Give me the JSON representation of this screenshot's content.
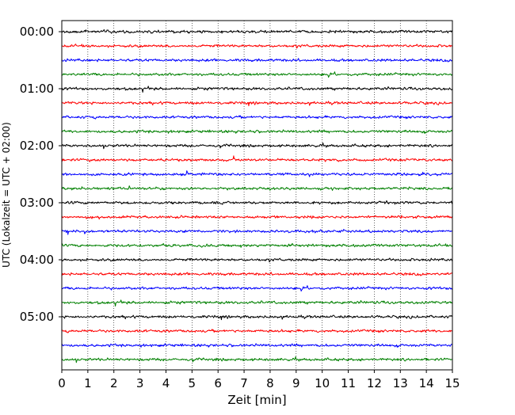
{
  "chart_data": {
    "type": "line",
    "title": "",
    "xlabel": "Zeit  [min]",
    "ylabel": "UTC (Lokalzeit = UTC + 02:00)",
    "xlim": [
      0,
      15
    ],
    "x_ticks": [
      0,
      1,
      2,
      3,
      4,
      5,
      6,
      7,
      8,
      9,
      10,
      11,
      12,
      13,
      14,
      15
    ],
    "y_tick_labels": [
      "00:00",
      "01:00",
      "02:00",
      "03:00",
      "04:00",
      "05:00"
    ],
    "grid": "vertical dotted lines at every minute",
    "trace_colors": [
      "#000000",
      "#ff0000",
      "#0000ff",
      "#008000"
    ],
    "trace_start_times": [
      "00:00",
      "00:15",
      "00:30",
      "00:45",
      "01:00",
      "01:15",
      "01:30",
      "01:45",
      "02:00",
      "02:15",
      "02:30",
      "02:45",
      "03:00",
      "03:15",
      "03:30",
      "03:45",
      "04:00",
      "04:15",
      "04:30",
      "04:45",
      "05:00",
      "05:15",
      "05:30",
      "05:45"
    ],
    "trace_duration_min": 15,
    "description": "seismic helicorder: 24 noise traces of 15 minutes each, colors cycle black/red/blue/green"
  }
}
